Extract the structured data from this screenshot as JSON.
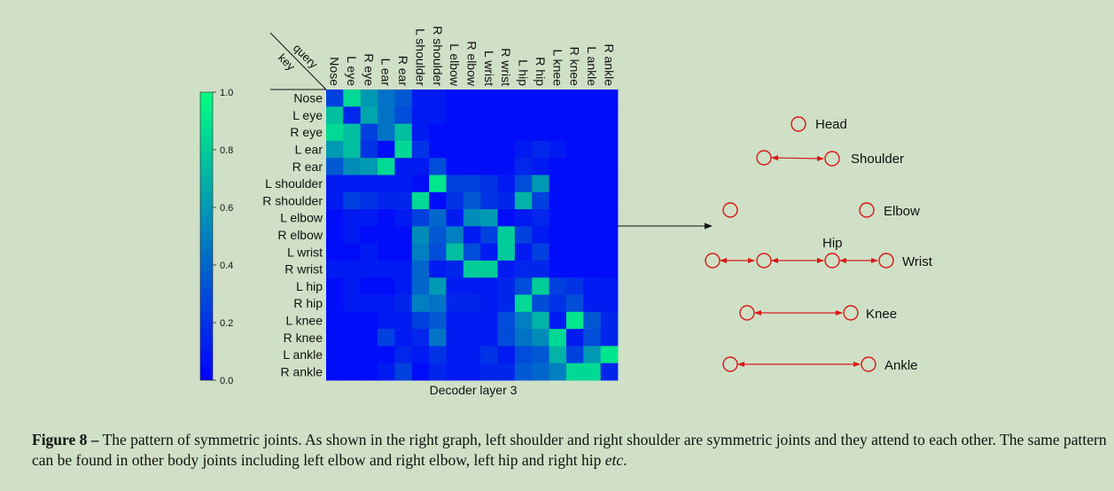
{
  "chart_data": {
    "type": "heatmap",
    "xlabel": "Decoder layer 3",
    "corner_labels": {
      "top": "query",
      "bottom": "key"
    },
    "columns": [
      "Nose",
      "L eye",
      "R eye",
      "L ear",
      "R ear",
      "L shoulder",
      "R shoulder",
      "L elbow",
      "R elbow",
      "L wrist",
      "R wrist",
      "L hip",
      "R hip",
      "L knee",
      "R knee",
      "L ankle",
      "R ankle"
    ],
    "rows": [
      "Nose",
      "L eye",
      "R eye",
      "L ear",
      "R ear",
      "L shoulder",
      "R shoulder",
      "L elbow",
      "R elbow",
      "L wrist",
      "R wrist",
      "L hip",
      "R hip",
      "L knee",
      "R knee",
      "L ankle",
      "R ankle"
    ],
    "values": [
      [
        0.25,
        0.85,
        0.6,
        0.45,
        0.35,
        0.1,
        0.1,
        0.05,
        0.05,
        0.05,
        0.05,
        0.05,
        0.05,
        0.05,
        0.05,
        0.05,
        0.05
      ],
      [
        0.75,
        0.15,
        0.65,
        0.45,
        0.3,
        0.1,
        0.1,
        0.05,
        0.05,
        0.05,
        0.05,
        0.05,
        0.05,
        0.05,
        0.05,
        0.05,
        0.05
      ],
      [
        0.85,
        0.75,
        0.25,
        0.45,
        0.75,
        0.1,
        0.05,
        0.05,
        0.05,
        0.05,
        0.05,
        0.05,
        0.05,
        0.05,
        0.05,
        0.05,
        0.05
      ],
      [
        0.6,
        0.75,
        0.2,
        0.05,
        0.85,
        0.2,
        0.05,
        0.05,
        0.05,
        0.05,
        0.05,
        0.1,
        0.15,
        0.1,
        0.05,
        0.05,
        0.05
      ],
      [
        0.35,
        0.55,
        0.6,
        0.85,
        0.1,
        0.1,
        0.3,
        0.05,
        0.05,
        0.05,
        0.05,
        0.15,
        0.1,
        0.05,
        0.05,
        0.05,
        0.05
      ],
      [
        0.1,
        0.1,
        0.1,
        0.1,
        0.1,
        0.05,
        0.9,
        0.25,
        0.25,
        0.2,
        0.1,
        0.3,
        0.6,
        0.05,
        0.05,
        0.05,
        0.05
      ],
      [
        0.1,
        0.25,
        0.2,
        0.15,
        0.15,
        0.85,
        0.05,
        0.2,
        0.35,
        0.2,
        0.15,
        0.7,
        0.25,
        0.05,
        0.05,
        0.05,
        0.05
      ],
      [
        0.05,
        0.1,
        0.1,
        0.05,
        0.1,
        0.25,
        0.4,
        0.1,
        0.55,
        0.6,
        0.05,
        0.1,
        0.15,
        0.05,
        0.05,
        0.05,
        0.05
      ],
      [
        0.05,
        0.1,
        0.05,
        0.05,
        0.05,
        0.55,
        0.35,
        0.5,
        0.1,
        0.25,
        0.8,
        0.25,
        0.1,
        0.05,
        0.05,
        0.05,
        0.05
      ],
      [
        0.05,
        0.05,
        0.1,
        0.05,
        0.05,
        0.5,
        0.3,
        0.75,
        0.3,
        0.1,
        0.8,
        0.1,
        0.25,
        0.05,
        0.05,
        0.05,
        0.05
      ],
      [
        0.1,
        0.1,
        0.1,
        0.1,
        0.1,
        0.4,
        0.1,
        0.15,
        0.8,
        0.8,
        0.1,
        0.15,
        0.15,
        0.05,
        0.05,
        0.05,
        0.05
      ],
      [
        0.05,
        0.1,
        0.05,
        0.05,
        0.1,
        0.4,
        0.6,
        0.1,
        0.1,
        0.1,
        0.15,
        0.3,
        0.8,
        0.25,
        0.2,
        0.1,
        0.1
      ],
      [
        0.05,
        0.1,
        0.1,
        0.1,
        0.15,
        0.5,
        0.45,
        0.15,
        0.15,
        0.1,
        0.15,
        0.85,
        0.3,
        0.2,
        0.3,
        0.1,
        0.1
      ],
      [
        0.05,
        0.05,
        0.05,
        0.1,
        0.1,
        0.25,
        0.35,
        0.1,
        0.1,
        0.1,
        0.3,
        0.5,
        0.7,
        0.1,
        0.9,
        0.35,
        0.15
      ],
      [
        0.05,
        0.05,
        0.05,
        0.25,
        0.1,
        0.15,
        0.45,
        0.1,
        0.1,
        0.1,
        0.3,
        0.45,
        0.55,
        0.85,
        0.1,
        0.3,
        0.15
      ],
      [
        0.05,
        0.05,
        0.05,
        0.05,
        0.15,
        0.1,
        0.2,
        0.1,
        0.1,
        0.2,
        0.1,
        0.3,
        0.35,
        0.7,
        0.25,
        0.6,
        0.9
      ],
      [
        0.05,
        0.05,
        0.05,
        0.1,
        0.25,
        0.05,
        0.15,
        0.1,
        0.1,
        0.15,
        0.15,
        0.35,
        0.4,
        0.5,
        0.85,
        0.85,
        0.15
      ]
    ],
    "colorbar": {
      "min": 0.0,
      "max": 1.0,
      "ticks": [
        "0.0",
        "0.2",
        "0.4",
        "0.6",
        "0.8",
        "1.0"
      ],
      "colormap": "winter (blue to green)"
    }
  },
  "skeleton": {
    "labels": {
      "head": "Head",
      "shoulder": "Shoulder",
      "elbow": "Elbow",
      "hip": "Hip",
      "wrist": "Wrist",
      "knee": "Knee",
      "ankle": "Ankle"
    },
    "colors": {
      "joint": "#d91818",
      "arrow": "#d91818",
      "pointer": "#111111"
    }
  },
  "caption": {
    "label": "Figure 8 –",
    "text_before_italic": " The pattern of symmetric joints. As shown in the right graph, left shoulder and right shoulder are symmetric joints and they attend to each other. The same pattern can be found in other body joints including left elbow and right elbow, left hip and right hip ",
    "italic": "etc",
    "text_after_italic": "."
  }
}
